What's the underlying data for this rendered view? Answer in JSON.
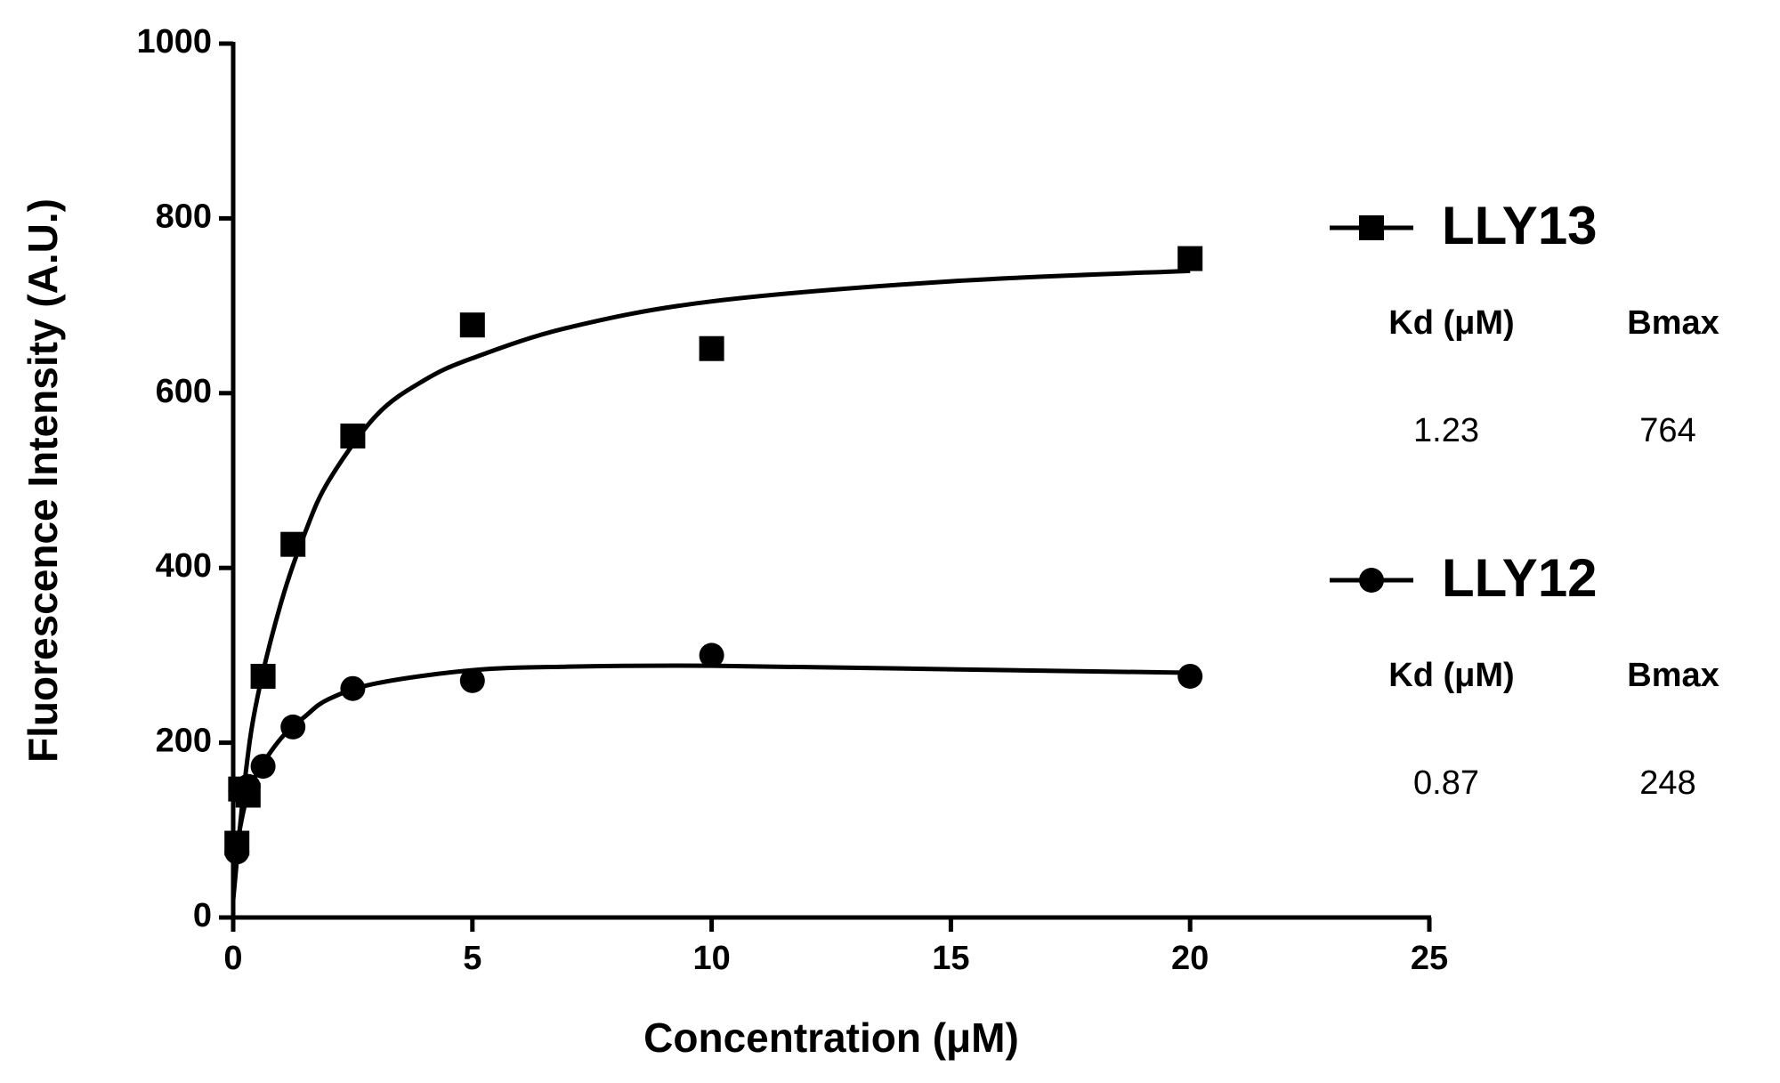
{
  "chart_data": {
    "type": "scatter",
    "xlabel": "Concentration (μM)",
    "ylabel": "Fluorescence Intensity (A.U.)",
    "xlim": [
      0,
      25
    ],
    "xticks": [
      0,
      5,
      10,
      15,
      20,
      25
    ],
    "ylim": [
      0,
      1000
    ],
    "yticks": [
      0,
      200,
      400,
      600,
      800,
      1000
    ],
    "legend_position": "right",
    "series": [
      {
        "name": "LLY13",
        "color": "#000000",
        "marker": "square",
        "x": [
          0.078,
          0.156,
          0.3125,
          0.625,
          1.25,
          2.5,
          5,
          10,
          20
        ],
        "values": [
          85,
          147,
          140,
          276,
          427,
          551,
          678,
          651,
          754
        ],
        "fit_x": [
          0,
          0.25,
          0.5,
          1,
          1.5,
          2,
          3,
          4,
          5,
          7,
          10,
          15,
          20
        ],
        "fit_values": [
          20,
          160,
          250,
          360,
          440,
          500,
          575,
          615,
          640,
          675,
          705,
          728,
          740
        ],
        "table": {
          "headers": [
            "Kd (μM)",
            "Bmax"
          ],
          "values": [
            1.23,
            764
          ]
        }
      },
      {
        "name": "LLY12",
        "color": "#000000",
        "marker": "circle",
        "x": [
          0.078,
          0.156,
          0.3125,
          0.625,
          1.25,
          2.5,
          5,
          10,
          20
        ],
        "values": [
          75,
          145,
          150,
          173,
          218,
          262,
          271,
          300,
          276
        ],
        "fit_x": [
          0,
          0.25,
          0.5,
          1,
          1.5,
          2,
          3,
          5,
          7,
          10,
          15,
          20
        ],
        "fit_values": [
          60,
          130,
          165,
          205,
          230,
          250,
          268,
          283,
          287,
          288,
          284,
          280
        ],
        "table": {
          "headers": [
            "Kd (μM)",
            "Bmax"
          ],
          "values": [
            0.87,
            248
          ]
        }
      }
    ]
  }
}
